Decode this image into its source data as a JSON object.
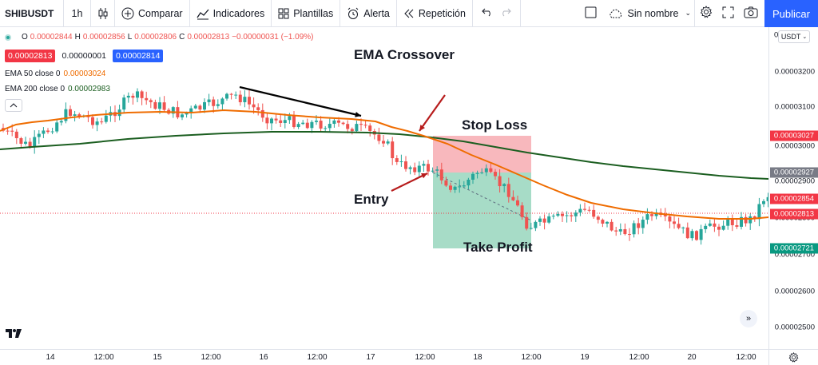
{
  "toolbar": {
    "symbol": "SHIBUSDT",
    "interval": "1h",
    "compare": "Comparar",
    "indicators": "Indicadores",
    "templates": "Plantillas",
    "alert": "Alerta",
    "replay": "Repetición",
    "layout_name": "Sin nombre",
    "publish": "Publicar"
  },
  "legend": {
    "o_label": "O",
    "o": "0.00002844",
    "h_label": "H",
    "h": "0.00002856",
    "l_label": "L",
    "l": "0.00002806",
    "c_label": "C",
    "c": "0.00002813",
    "change": "−0.00000031 (−1.09%)",
    "bid": "0.00002813",
    "spread": "0.00000001",
    "ask": "0.00002814",
    "ema50_label": "EMA 50 close 0",
    "ema50_value": "0.00003024",
    "ema200_label": "EMA 200 close 0",
    "ema200_value": "0.00002983"
  },
  "annotations": {
    "title": "EMA Crossover",
    "stop_loss": "Stop Loss",
    "entry": "Entry",
    "take_profit": "Take Profit"
  },
  "price_axis": {
    "currency": "USDT",
    "top_cut": "0",
    "labels": [
      "0.00003200",
      "0.00003100",
      "0.00003000",
      "0.00002900",
      "0.00002800",
      "0.00002700",
      "0.00002600",
      "0.00002500"
    ],
    "tags": [
      {
        "text": "0.00003027",
        "color": "#f23645"
      },
      {
        "text": "0.00002927",
        "color": "#787b86"
      },
      {
        "text": "0.00002854",
        "color": "#f23645"
      },
      {
        "text": "0.00002813",
        "color": "#f23645"
      },
      {
        "text": "0.00002721",
        "color": "#089981"
      }
    ]
  },
  "time_axis": {
    "labels": [
      "14",
      "12:00",
      "15",
      "12:00",
      "16",
      "12:00",
      "17",
      "12:00",
      "18",
      "12:00",
      "19",
      "12:00",
      "20",
      "12:00"
    ]
  },
  "colors": {
    "ema50": "#ef6c00",
    "ema200": "#1b5e20",
    "bull": "#26a69a",
    "bear": "#ef5350",
    "stop_zone": "#f8b8bd",
    "profit_zone": "#a7dcc7",
    "accent": "#2962ff"
  }
}
